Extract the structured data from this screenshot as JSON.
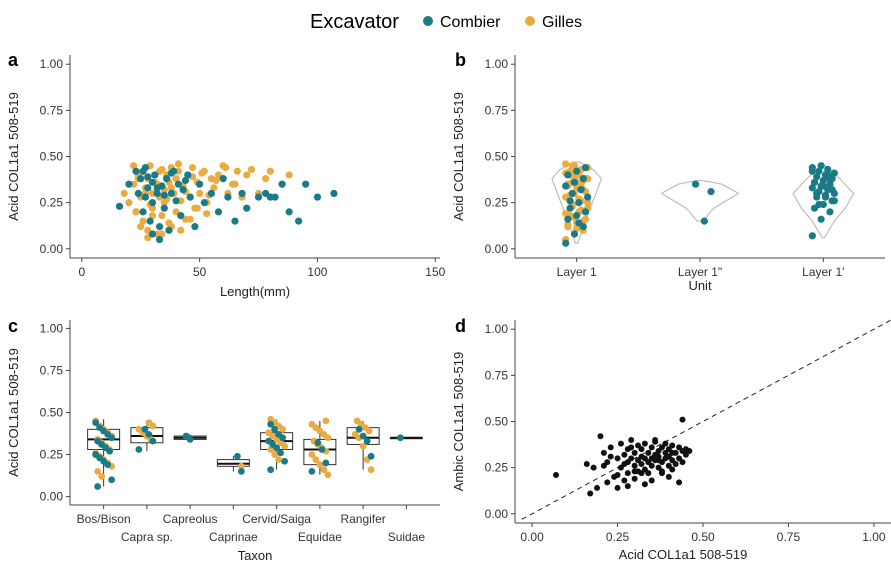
{
  "legend": {
    "title": "Excavator",
    "items": [
      {
        "name": "Combier",
        "color": "#1b7a87"
      },
      {
        "name": "Gilles",
        "color": "#e8ac43"
      }
    ]
  },
  "colors": {
    "combier": "#1b7a87",
    "gilles": "#e8ac43",
    "black": "#111111",
    "violin": "#bdbdbd",
    "axis": "#444444"
  },
  "chart_data": [
    {
      "panel": "a",
      "type": "scatter",
      "xlabel": "Length(mm)",
      "ylabel": "Acid COL1a1 508-519",
      "xlim": [
        -5,
        152
      ],
      "ylim": [
        -0.05,
        1.05
      ],
      "xticks": [
        "0",
        "50",
        "100",
        "150"
      ],
      "yticks": [
        "0.00",
        "0.25",
        "0.50",
        "0.75",
        "1.00"
      ],
      "series": [
        {
          "name": "Gilles",
          "x": [
            18,
            20,
            22,
            23,
            24,
            25,
            26,
            26,
            27,
            28,
            28,
            29,
            30,
            30,
            31,
            32,
            32,
            33,
            34,
            34,
            35,
            35,
            36,
            37,
            38,
            38,
            39,
            40,
            40,
            41,
            42,
            43,
            44,
            45,
            46,
            47,
            48,
            49,
            50,
            52,
            53,
            55,
            56,
            58,
            60,
            62,
            64,
            66,
            68,
            70,
            72,
            75,
            78,
            80,
            85,
            88,
            22,
            24,
            27,
            29,
            31,
            33,
            36,
            38,
            41,
            44,
            47,
            51,
            54,
            57,
            61,
            65,
            23,
            25,
            28,
            30,
            34,
            37,
            42,
            46,
            49,
            53
          ],
          "y": [
            0.3,
            0.25,
            0.35,
            0.2,
            0.4,
            0.28,
            0.42,
            0.15,
            0.33,
            0.38,
            0.1,
            0.45,
            0.3,
            0.22,
            0.4,
            0.35,
            0.08,
            0.28,
            0.43,
            0.18,
            0.32,
            0.25,
            0.4,
            0.36,
            0.12,
            0.44,
            0.3,
            0.2,
            0.38,
            0.42,
            0.26,
            0.34,
            0.16,
            0.4,
            0.28,
            0.44,
            0.22,
            0.36,
            0.3,
            0.42,
            0.25,
            0.38,
            0.33,
            0.4,
            0.45,
            0.3,
            0.35,
            0.42,
            0.28,
            0.4,
            0.43,
            0.3,
            0.38,
            0.42,
            0.35,
            0.4,
            0.45,
            0.38,
            0.3,
            0.24,
            0.36,
            0.42,
            0.27,
            0.33,
            0.46,
            0.31,
            0.39,
            0.41,
            0.29,
            0.37,
            0.44,
            0.35,
            0.2,
            0.12,
            0.06,
            0.18,
            0.08,
            0.14,
            0.1,
            0.16,
            0.22,
            0.19
          ]
        },
        {
          "name": "Combier",
          "x": [
            16,
            20,
            23,
            24,
            25,
            26,
            27,
            27,
            28,
            29,
            30,
            30,
            31,
            32,
            33,
            34,
            35,
            36,
            37,
            38,
            39,
            40,
            41,
            42,
            43,
            45,
            46,
            48,
            50,
            52,
            55,
            58,
            60,
            62,
            65,
            68,
            70,
            75,
            78,
            80,
            82,
            85,
            88,
            92,
            95,
            100,
            107,
            26,
            28,
            32,
            35,
            38,
            44,
            30,
            33
          ],
          "y": [
            0.23,
            0.35,
            0.42,
            0.3,
            0.38,
            0.2,
            0.44,
            0.28,
            0.33,
            0.15,
            0.36,
            0.25,
            0.4,
            0.3,
            0.05,
            0.34,
            0.22,
            0.38,
            0.1,
            0.3,
            0.42,
            0.26,
            0.35,
            0.18,
            0.32,
            0.4,
            0.28,
            0.12,
            0.35,
            0.25,
            0.3,
            0.2,
            0.38,
            0.28,
            0.15,
            0.3,
            0.22,
            0.28,
            0.3,
            0.28,
            0.28,
            0.35,
            0.2,
            0.15,
            0.35,
            0.28,
            0.3,
            0.42,
            0.39,
            0.33,
            0.29,
            0.41,
            0.37,
            0.08,
            0.12
          ]
        }
      ]
    },
    {
      "panel": "b",
      "type": "violin",
      "xlabel": "Unit",
      "ylabel": "Acid COL1a1 508-519",
      "categories": [
        "Layer 1",
        "Layer 1\"",
        "Layer 1'"
      ],
      "ylim": [
        -0.05,
        1.05
      ],
      "yticks": [
        "0.00",
        "0.25",
        "0.50",
        "0.75",
        "1.00"
      ],
      "violins": [
        {
          "y": [
            0.03,
            0.1,
            0.2,
            0.3,
            0.38,
            0.43,
            0.47
          ],
          "w": [
            0.02,
            0.1,
            0.22,
            0.35,
            0.45,
            0.3,
            0.05
          ]
        },
        {
          "y": [
            0.15,
            0.22,
            0.3,
            0.35,
            0.37
          ],
          "w": [
            0.05,
            0.25,
            0.7,
            0.4,
            0.05
          ]
        },
        {
          "y": [
            0.06,
            0.15,
            0.22,
            0.3,
            0.38,
            0.45
          ],
          "w": [
            0.02,
            0.2,
            0.4,
            0.55,
            0.3,
            0.03
          ]
        }
      ],
      "series": [
        {
          "name": "Gilles",
          "cat": [
            0,
            0,
            0,
            0,
            0,
            0,
            0,
            0,
            0,
            0,
            0,
            0,
            0,
            0,
            0,
            0,
            0,
            0,
            0,
            0,
            0,
            0,
            0,
            0,
            0,
            0,
            0,
            0,
            0,
            0,
            0,
            0,
            0,
            0,
            0,
            0,
            0,
            0,
            0,
            0,
            0,
            0,
            0,
            0,
            0,
            0
          ],
          "y": [
            0.05,
            0.08,
            0.1,
            0.12,
            0.14,
            0.16,
            0.18,
            0.2,
            0.22,
            0.24,
            0.26,
            0.28,
            0.3,
            0.32,
            0.34,
            0.36,
            0.38,
            0.4,
            0.42,
            0.44,
            0.45,
            0.43,
            0.41,
            0.39,
            0.37,
            0.35,
            0.33,
            0.31,
            0.29,
            0.27,
            0.25,
            0.23,
            0.21,
            0.19,
            0.17,
            0.15,
            0.13,
            0.11,
            0.44,
            0.42,
            0.4,
            0.38,
            0.36,
            0.34,
            0.46,
            0.45
          ]
        },
        {
          "name": "Combier",
          "cat": [
            0,
            0,
            0,
            0,
            0,
            0,
            0,
            0,
            0,
            0,
            0,
            0,
            0,
            0,
            0,
            0,
            0,
            0,
            0,
            1,
            1,
            1,
            2,
            2,
            2,
            2,
            2,
            2,
            2,
            2,
            2,
            2,
            2,
            2,
            2,
            2,
            2,
            2,
            2,
            2,
            2,
            2,
            2,
            2,
            2,
            2,
            2,
            2,
            2,
            2,
            2,
            2,
            2,
            2,
            2,
            2
          ],
          "y": [
            0.03,
            0.08,
            0.12,
            0.16,
            0.18,
            0.2,
            0.22,
            0.25,
            0.28,
            0.3,
            0.32,
            0.34,
            0.36,
            0.38,
            0.4,
            0.42,
            0.44,
            0.26,
            0.14,
            0.31,
            0.35,
            0.15,
            0.07,
            0.16,
            0.2,
            0.22,
            0.24,
            0.26,
            0.28,
            0.29,
            0.3,
            0.31,
            0.32,
            0.33,
            0.34,
            0.35,
            0.36,
            0.37,
            0.38,
            0.39,
            0.4,
            0.41,
            0.42,
            0.43,
            0.44,
            0.45,
            0.38,
            0.36,
            0.34,
            0.32,
            0.3,
            0.28,
            0.26,
            0.24,
            0.4,
            0.42
          ]
        }
      ]
    },
    {
      "panel": "c",
      "type": "box",
      "xlabel": "Taxon",
      "ylabel": "Acid COL1a1 508-519",
      "categories": [
        "Bos/Bison",
        "Capra sp.",
        "Capreolus",
        "Caprinae",
        "Cervid/Saiga",
        "Equidae",
        "Rangifer",
        "Suidae"
      ],
      "ylim": [
        -0.05,
        1.05
      ],
      "yticks": [
        "0.00",
        "0.25",
        "0.50",
        "0.75",
        "1.00"
      ],
      "boxes": [
        {
          "q1": 0.28,
          "median": 0.34,
          "q3": 0.4,
          "whisker_low": 0.06,
          "whisker_high": 0.46
        },
        {
          "q1": 0.32,
          "median": 0.36,
          "q3": 0.41,
          "whisker_low": 0.27,
          "whisker_high": 0.44
        },
        {
          "q1": 0.34,
          "median": 0.35,
          "q3": 0.36,
          "whisker_low": 0.34,
          "whisker_high": 0.37
        },
        {
          "q1": 0.18,
          "median": 0.195,
          "q3": 0.22,
          "whisker_low": 0.15,
          "whisker_high": 0.24
        },
        {
          "q1": 0.28,
          "median": 0.33,
          "q3": 0.38,
          "whisker_low": 0.16,
          "whisker_high": 0.46
        },
        {
          "q1": 0.19,
          "median": 0.28,
          "q3": 0.34,
          "whisker_low": 0.13,
          "whisker_high": 0.45
        },
        {
          "q1": 0.31,
          "median": 0.35,
          "q3": 0.41,
          "whisker_low": 0.16,
          "whisker_high": 0.45
        },
        {
          "q1": 0.35,
          "median": 0.35,
          "q3": 0.35,
          "whisker_low": 0.35,
          "whisker_high": 0.35
        }
      ],
      "series": [
        {
          "name": "Gilles",
          "cat": [
            0,
            0,
            0,
            0,
            0,
            0,
            0,
            0,
            0,
            0,
            0,
            0,
            0,
            0,
            0,
            0,
            1,
            1,
            1,
            1,
            1,
            1,
            3,
            4,
            4,
            4,
            4,
            4,
            4,
            4,
            4,
            4,
            4,
            4,
            4,
            5,
            5,
            5,
            5,
            5,
            5,
            5,
            5,
            5,
            5,
            5,
            5,
            5,
            5,
            5,
            6,
            6,
            6,
            6,
            6,
            6,
            6,
            6,
            6
          ],
          "y": [
            0.45,
            0.42,
            0.4,
            0.38,
            0.36,
            0.34,
            0.32,
            0.3,
            0.28,
            0.26,
            0.24,
            0.22,
            0.2,
            0.18,
            0.15,
            0.12,
            0.44,
            0.42,
            0.4,
            0.38,
            0.36,
            0.34,
            0.18,
            0.46,
            0.44,
            0.42,
            0.4,
            0.38,
            0.36,
            0.34,
            0.32,
            0.3,
            0.28,
            0.25,
            0.22,
            0.45,
            0.43,
            0.41,
            0.39,
            0.37,
            0.35,
            0.33,
            0.31,
            0.29,
            0.27,
            0.25,
            0.22,
            0.19,
            0.16,
            0.13,
            0.45,
            0.43,
            0.41,
            0.39,
            0.37,
            0.35,
            0.3,
            0.22,
            0.16
          ]
        },
        {
          "name": "Combier",
          "cat": [
            0,
            0,
            0,
            0,
            0,
            0,
            0,
            0,
            0,
            0,
            0,
            0,
            0,
            0,
            0,
            1,
            1,
            1,
            1,
            2,
            2,
            3,
            3,
            4,
            4,
            4,
            4,
            4,
            4,
            4,
            4,
            4,
            4,
            5,
            5,
            5,
            5,
            6,
            6,
            6,
            6,
            7
          ],
          "y": [
            0.44,
            0.41,
            0.39,
            0.37,
            0.35,
            0.33,
            0.31,
            0.29,
            0.27,
            0.25,
            0.23,
            0.21,
            0.19,
            0.1,
            0.06,
            0.4,
            0.37,
            0.33,
            0.28,
            0.36,
            0.34,
            0.24,
            0.15,
            0.43,
            0.4,
            0.37,
            0.35,
            0.33,
            0.31,
            0.29,
            0.26,
            0.21,
            0.16,
            0.32,
            0.28,
            0.2,
            0.15,
            0.4,
            0.36,
            0.33,
            0.24,
            0.35
          ]
        }
      ]
    },
    {
      "panel": "d",
      "type": "scatter",
      "xlabel": "Acid COL1a1 508-519",
      "ylabel": "Ambic COL1a1 508-519",
      "xlim": [
        -0.05,
        1.05
      ],
      "ylim": [
        -0.05,
        1.05
      ],
      "xticks": [
        "0.00",
        "0.25",
        "0.50",
        "0.75",
        "1.00"
      ],
      "yticks": [
        "0.00",
        "0.25",
        "0.50",
        "0.75",
        "1.00"
      ],
      "reference_line": "y = x (dashed)",
      "series": [
        {
          "name": "",
          "color": "#111111",
          "x": [
            0.07,
            0.17,
            0.18,
            0.2,
            0.21,
            0.22,
            0.22,
            0.23,
            0.24,
            0.25,
            0.25,
            0.26,
            0.26,
            0.27,
            0.27,
            0.28,
            0.28,
            0.28,
            0.29,
            0.29,
            0.3,
            0.3,
            0.3,
            0.31,
            0.31,
            0.31,
            0.32,
            0.32,
            0.32,
            0.33,
            0.33,
            0.33,
            0.34,
            0.34,
            0.34,
            0.35,
            0.35,
            0.35,
            0.36,
            0.36,
            0.36,
            0.37,
            0.37,
            0.37,
            0.38,
            0.38,
            0.38,
            0.39,
            0.39,
            0.39,
            0.4,
            0.4,
            0.4,
            0.41,
            0.41,
            0.41,
            0.42,
            0.42,
            0.43,
            0.43,
            0.44,
            0.44,
            0.45,
            0.45,
            0.46,
            0.25,
            0.3,
            0.35,
            0.4,
            0.28,
            0.33,
            0.38,
            0.43,
            0.21,
            0.19,
            0.16,
            0.23,
            0.29,
            0.36,
            0.41,
            0.44,
            0.32,
            0.27,
            0.37
          ],
          "y": [
            0.21,
            0.11,
            0.25,
            0.42,
            0.33,
            0.28,
            0.17,
            0.36,
            0.2,
            0.3,
            0.14,
            0.25,
            0.38,
            0.32,
            0.18,
            0.28,
            0.35,
            0.22,
            0.3,
            0.4,
            0.26,
            0.33,
            0.19,
            0.29,
            0.37,
            0.23,
            0.31,
            0.27,
            0.35,
            0.24,
            0.3,
            0.38,
            0.28,
            0.33,
            0.22,
            0.3,
            0.36,
            0.26,
            0.32,
            0.29,
            0.39,
            0.25,
            0.34,
            0.31,
            0.28,
            0.36,
            0.23,
            0.33,
            0.3,
            0.38,
            0.26,
            0.35,
            0.31,
            0.29,
            0.37,
            0.24,
            0.33,
            0.27,
            0.36,
            0.3,
            0.34,
            0.28,
            0.35,
            0.32,
            0.34,
            0.21,
            0.23,
            0.18,
            0.2,
            0.15,
            0.16,
            0.22,
            0.17,
            0.26,
            0.14,
            0.27,
            0.31,
            0.36,
            0.4,
            0.33,
            0.51,
            0.22,
            0.27,
            0.29
          ]
        }
      ]
    }
  ]
}
